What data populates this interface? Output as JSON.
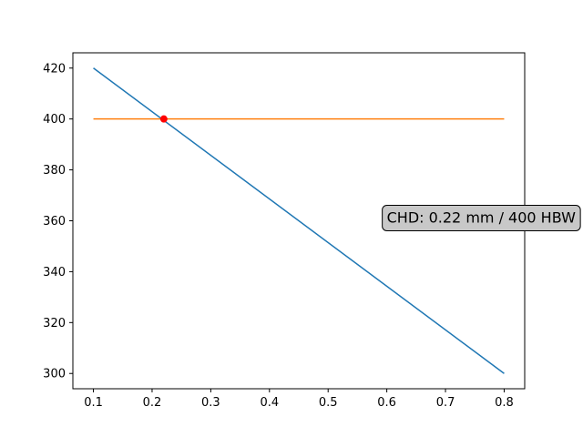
{
  "chart_data": {
    "type": "line",
    "title": "",
    "xlabel": "",
    "ylabel": "",
    "xlim": [
      0.065,
      0.835
    ],
    "ylim": [
      294,
      426
    ],
    "xticks": [
      0.1,
      0.2,
      0.3,
      0.4,
      0.5,
      0.6,
      0.7,
      0.8
    ],
    "yticks": [
      300,
      320,
      340,
      360,
      380,
      400,
      420
    ],
    "grid": false,
    "series": [
      {
        "x": [
          0.1,
          0.8
        ],
        "y": [
          420,
          300
        ],
        "color": "#1f77b4"
      },
      {
        "x": [
          0.1,
          0.8
        ],
        "y": [
          400,
          400
        ],
        "color": "#ff7f0e"
      }
    ],
    "points": [
      {
        "x": 0.22,
        "y": 400,
        "color": "#ff0000"
      }
    ],
    "annotations": [
      {
        "text": "CHD: 0.22 mm / 400 HBW",
        "x": 0.6,
        "y": 360
      }
    ]
  }
}
